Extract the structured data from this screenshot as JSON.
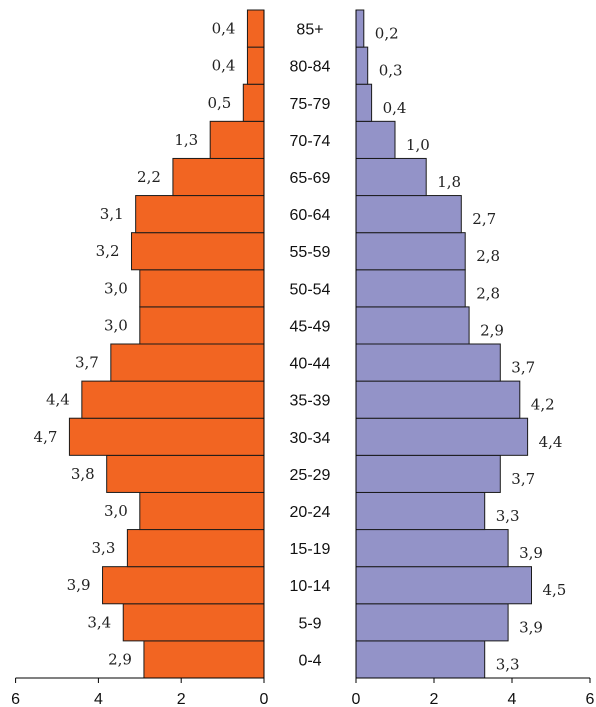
{
  "chart_data": {
    "type": "bar",
    "orientation": "horizontal",
    "style": "population-pyramid",
    "categories": [
      "0-4",
      "5-9",
      "10-14",
      "15-19",
      "20-24",
      "25-29",
      "30-34",
      "35-39",
      "40-44",
      "45-49",
      "50-54",
      "55-59",
      "60-64",
      "65-69",
      "70-74",
      "75-79",
      "80-84",
      "85+"
    ],
    "series": [
      {
        "side": "left",
        "color": "#f26522",
        "values": [
          2.9,
          3.4,
          3.9,
          3.3,
          3.0,
          3.8,
          4.7,
          4.4,
          3.7,
          3.0,
          3.0,
          3.2,
          3.1,
          2.2,
          1.3,
          0.5,
          0.4,
          0.4
        ],
        "value_labels": [
          "2,9",
          "3,4",
          "3,9",
          "3,3",
          "3,0",
          "3,8",
          "4,7",
          "4,4",
          "3,7",
          "3,0",
          "3,0",
          "3,2",
          "3,1",
          "2,2",
          "1,3",
          "0,5",
          "0,4",
          "0,4"
        ]
      },
      {
        "side": "right",
        "color": "#9393c8",
        "values": [
          3.3,
          3.9,
          4.5,
          3.9,
          3.3,
          3.7,
          4.4,
          4.2,
          3.7,
          2.9,
          2.8,
          2.8,
          2.7,
          1.8,
          1.0,
          0.4,
          0.3,
          0.2
        ],
        "value_labels": [
          "3,3",
          "3,9",
          "4,5",
          "3,9",
          "3,3",
          "3,7",
          "4,4",
          "4,2",
          "3,7",
          "2,9",
          "2,8",
          "2,8",
          "2,7",
          "1,8",
          "1,0",
          "0,4",
          "0,3",
          "0,2"
        ]
      }
    ],
    "left_axis": {
      "range": [
        6,
        0
      ],
      "ticks": [
        "6",
        "4",
        "2",
        "0"
      ]
    },
    "right_axis": {
      "range": [
        0,
        6
      ],
      "ticks": [
        "0",
        "2",
        "4",
        "6"
      ]
    },
    "title": "",
    "xlabel": "",
    "ylabel": "",
    "legend": "none",
    "grid": false
  }
}
